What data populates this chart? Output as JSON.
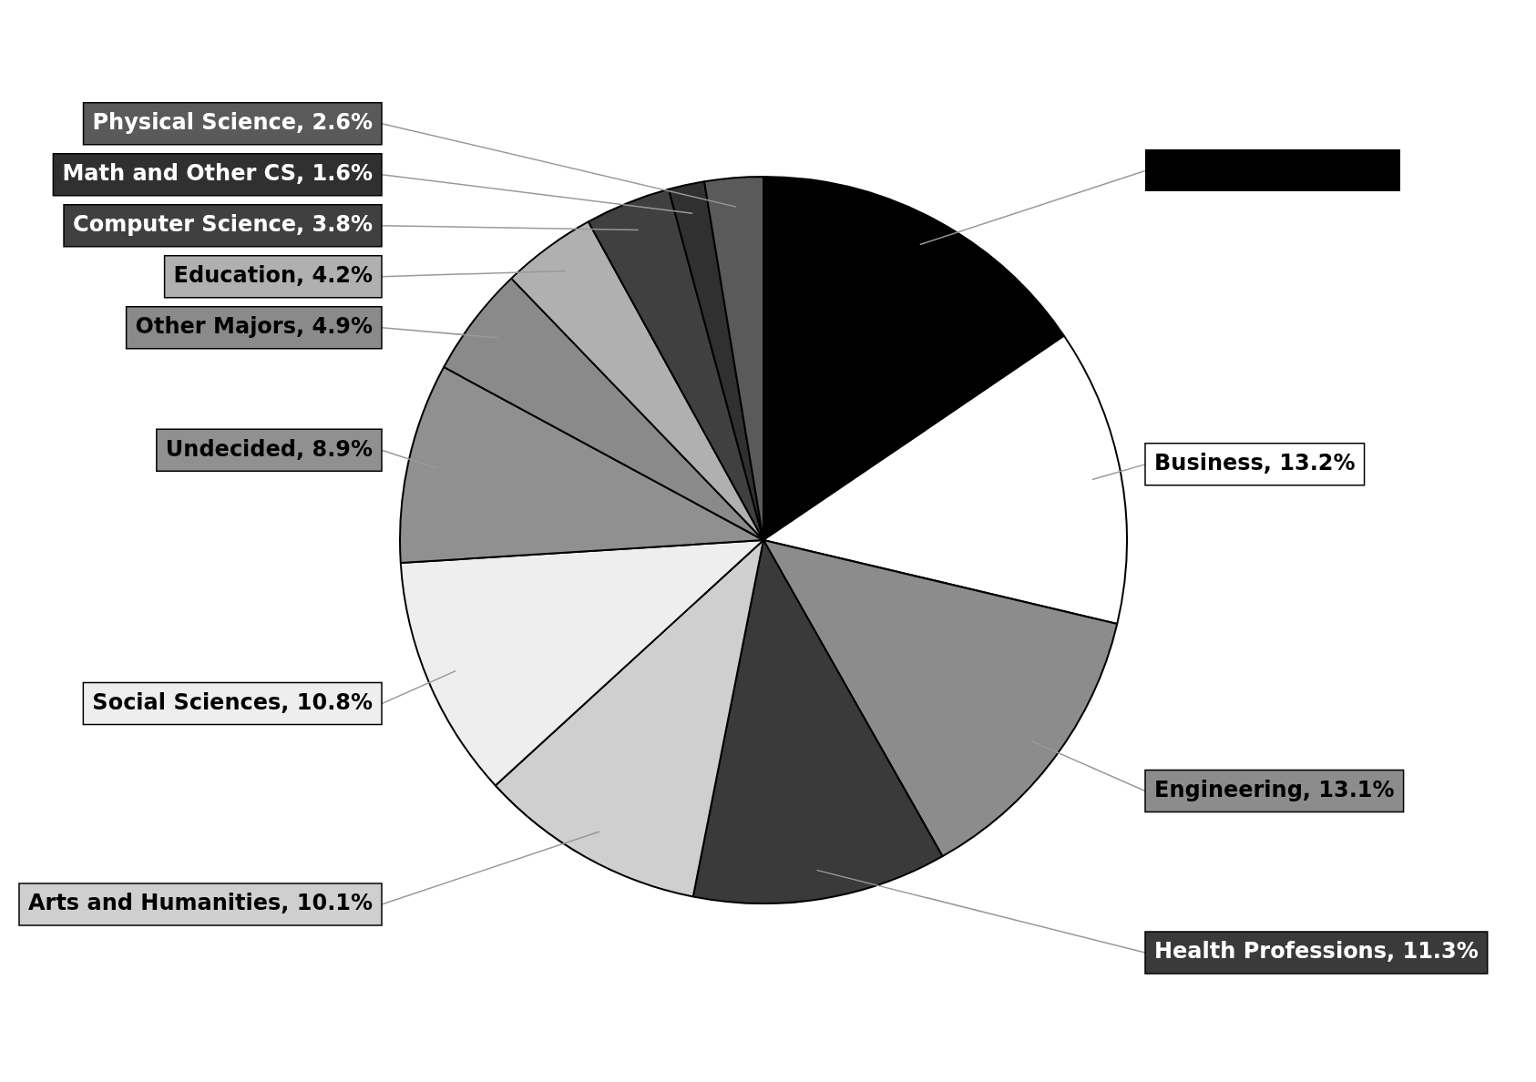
{
  "chart_data": {
    "type": "pie",
    "categories": [
      null,
      "Business",
      "Engineering",
      "Health Professions",
      "Arts and Humanities",
      "Social Sciences",
      "Undecided",
      "Other Majors",
      "Education",
      "Computer Science",
      "Math and Other CS",
      "Physical Science"
    ],
    "values": [
      15.5,
      13.2,
      13.1,
      11.3,
      10.1,
      10.8,
      8.9,
      4.9,
      4.2,
      3.8,
      1.6,
      2.6
    ],
    "value_labels": [
      null,
      "13.2%",
      "13.1%",
      "11.3%",
      "10.1%",
      "10.8%",
      "8.9%",
      "4.9%",
      "4.2%",
      "3.8%",
      "1.6%",
      "2.6%"
    ],
    "colors": [
      "#000000",
      "#ffffff",
      "#8c8c8c",
      "#3a3a3a",
      "#cfcfcf",
      "#eeeeee",
      "#909090",
      "#8a8a8a",
      "#b0b0b0",
      "#404040",
      "#303030",
      "#5a5a5a"
    ],
    "legend": false
  }
}
